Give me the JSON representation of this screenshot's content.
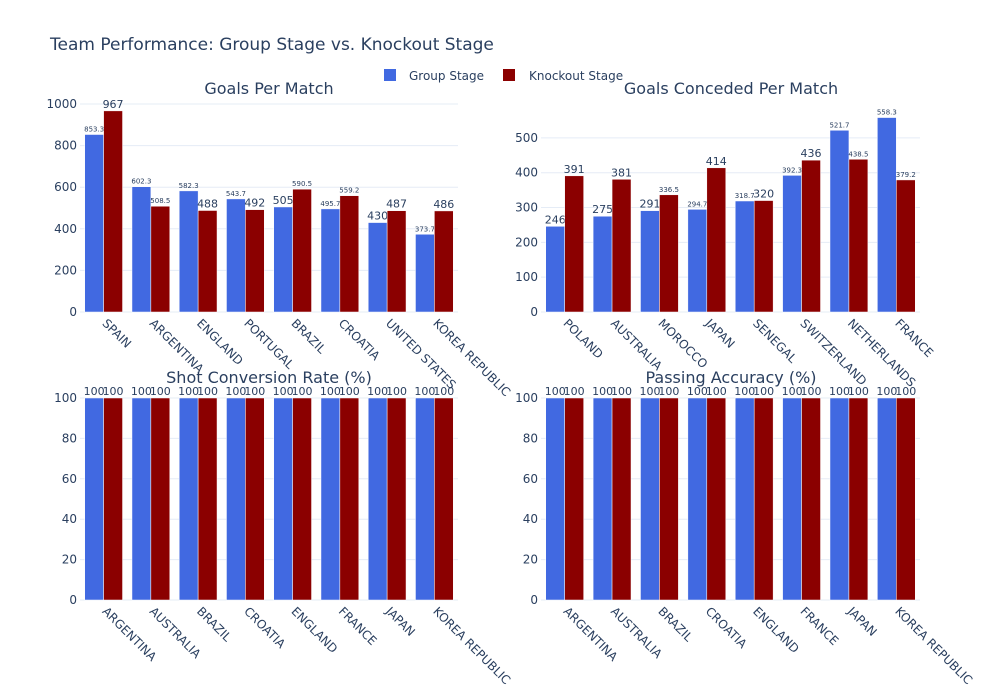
{
  "title": "Team Performance: Group Stage vs. Knockout Stage",
  "legend": {
    "items": [
      {
        "name": "Group Stage",
        "color": "#4169e1"
      },
      {
        "name": "Knockout Stage",
        "color": "#8b0000"
      }
    ],
    "placement": "top-center"
  },
  "chart_data": [
    {
      "type": "bar",
      "title": "Goals Per Match",
      "categories": [
        "SPAIN",
        "ARGENTINA",
        "ENGLAND",
        "PORTUGAL",
        "BRAZIL",
        "CROATIA",
        "UNITED STATES",
        "KOREA REPUBLIC"
      ],
      "series": [
        {
          "name": "Group Stage",
          "values": [
            853.3,
            602.3,
            582.3,
            543.7,
            505,
            495.7,
            430,
            373.7
          ]
        },
        {
          "name": "Knockout Stage",
          "values": [
            967,
            508.5,
            488,
            492,
            590.5,
            559.2,
            487,
            486
          ]
        }
      ],
      "ylim": [
        0,
        1000
      ],
      "yticks": [
        0,
        200,
        400,
        600,
        800,
        1000
      ]
    },
    {
      "type": "bar",
      "title": "Goals Conceded Per Match",
      "categories": [
        "POLAND",
        "AUSTRALIA",
        "MOROCCO",
        "JAPAN",
        "SENEGAL",
        "SWITZERLAND",
        "NETHERLANDS",
        "FRANCE"
      ],
      "series": [
        {
          "name": "Group Stage",
          "values": [
            246,
            275,
            291,
            294.7,
            318.7,
            392.3,
            521.7,
            558.3
          ]
        },
        {
          "name": "Knockout Stage",
          "values": [
            391,
            381,
            336.5,
            414,
            320,
            436,
            438.5,
            379.2
          ]
        }
      ],
      "ylim": [
        0,
        580
      ],
      "yticks": [
        0,
        100,
        200,
        300,
        400,
        500
      ]
    },
    {
      "type": "bar",
      "title": "Shot Conversion Rate (%)",
      "categories": [
        "ARGENTINA",
        "AUSTRALIA",
        "BRAZIL",
        "CROATIA",
        "ENGLAND",
        "FRANCE",
        "JAPAN",
        "KOREA REPUBLIC"
      ],
      "series": [
        {
          "name": "Group Stage",
          "values": [
            100,
            100,
            100,
            100,
            100,
            100,
            100,
            100
          ]
        },
        {
          "name": "Knockout Stage",
          "values": [
            100,
            100,
            100,
            100,
            100,
            100,
            100,
            100
          ]
        }
      ],
      "ylim": [
        0,
        100
      ],
      "yticks": [
        0,
        20,
        40,
        60,
        80,
        100
      ]
    },
    {
      "type": "bar",
      "title": "Passing Accuracy (%)",
      "categories": [
        "ARGENTINA",
        "AUSTRALIA",
        "BRAZIL",
        "CROATIA",
        "ENGLAND",
        "FRANCE",
        "JAPAN",
        "KOREA REPUBLIC"
      ],
      "series": [
        {
          "name": "Group Stage",
          "values": [
            100,
            100,
            100,
            100,
            100,
            100,
            100,
            100
          ]
        },
        {
          "name": "Knockout Stage",
          "values": [
            100,
            100,
            100,
            100,
            100,
            100,
            100,
            100
          ]
        }
      ],
      "ylim": [
        0,
        100
      ],
      "yticks": [
        0,
        20,
        40,
        60,
        80,
        100
      ]
    }
  ]
}
